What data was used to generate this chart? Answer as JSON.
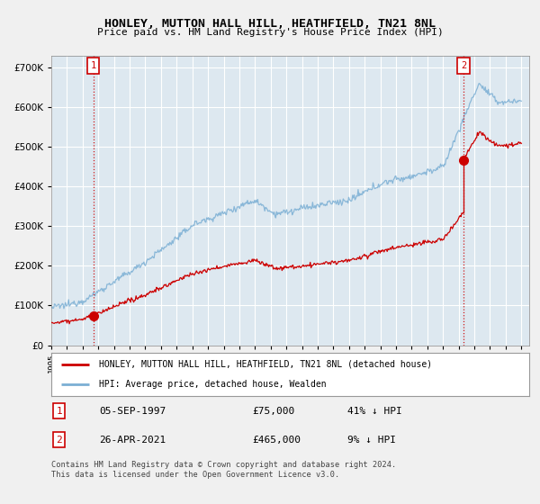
{
  "title": "HONLEY, MUTTON HALL HILL, HEATHFIELD, TN21 8NL",
  "subtitle": "Price paid vs. HM Land Registry's House Price Index (HPI)",
  "legend_line1": "HONLEY, MUTTON HALL HILL, HEATHFIELD, TN21 8NL (detached house)",
  "legend_line2": "HPI: Average price, detached house, Wealden",
  "annotation1_label": "1",
  "annotation1_date": "05-SEP-1997",
  "annotation1_price": "£75,000",
  "annotation1_hpi": "41% ↓ HPI",
  "annotation2_label": "2",
  "annotation2_date": "26-APR-2021",
  "annotation2_price": "£465,000",
  "annotation2_hpi": "9% ↓ HPI",
  "footer": "Contains HM Land Registry data © Crown copyright and database right 2024.\nThis data is licensed under the Open Government Licence v3.0.",
  "price_color": "#cc0000",
  "hpi_color": "#7bafd4",
  "ylim": [
    0,
    730000
  ],
  "xlim_start": 1995.0,
  "xlim_end": 2025.5,
  "sale1_x": 1997.68,
  "sale1_y": 75000,
  "sale2_x": 2021.32,
  "sale2_y": 465000,
  "background_color": "#f0f0f0",
  "plot_bg": "#dde8f0"
}
